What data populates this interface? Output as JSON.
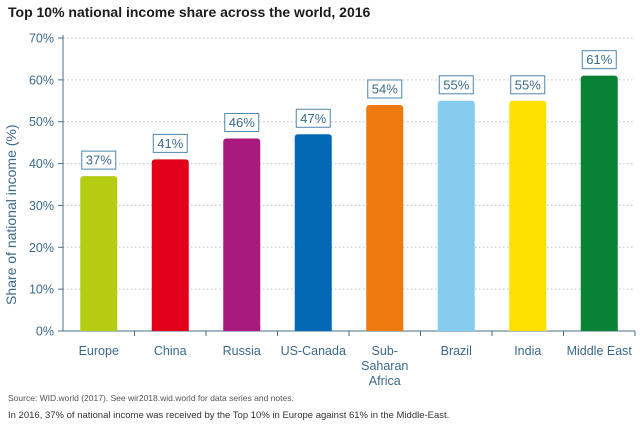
{
  "title": "Top 10% national income share across the world, 2016",
  "source": "Source: WID.world (2017). See wir2018.wid.world for data series and notes.",
  "note": "In 2016, 37% of national income was received by the Top 10% in Europe against 61% in the Middle-East.",
  "chart_data": {
    "type": "bar",
    "title": "Top 10% national income share across the world, 2016",
    "xlabel": "",
    "ylabel": "Share of national income (%)",
    "ylim": [
      0,
      70
    ],
    "yticks": [
      "0%",
      "10%",
      "20%",
      "30%",
      "40%",
      "50%",
      "60%",
      "70%"
    ],
    "grid": true,
    "categories": [
      [
        "Europe"
      ],
      [
        "China"
      ],
      [
        "Russia"
      ],
      [
        "US-Canada"
      ],
      [
        "Sub-",
        "Saharan",
        "Africa"
      ],
      [
        "Brazil"
      ],
      [
        "India"
      ],
      [
        "Middle East"
      ]
    ],
    "values": [
      37,
      41,
      46,
      47,
      54,
      55,
      55,
      61
    ],
    "value_labels": [
      "37%",
      "41%",
      "46%",
      "47%",
      "54%",
      "55%",
      "55%",
      "61%"
    ],
    "colors": [
      "#b5cc13",
      "#e3001a",
      "#a81a7e",
      "#0469b4",
      "#f07a10",
      "#86cbf0",
      "#fee000",
      "#0a8235"
    ]
  }
}
